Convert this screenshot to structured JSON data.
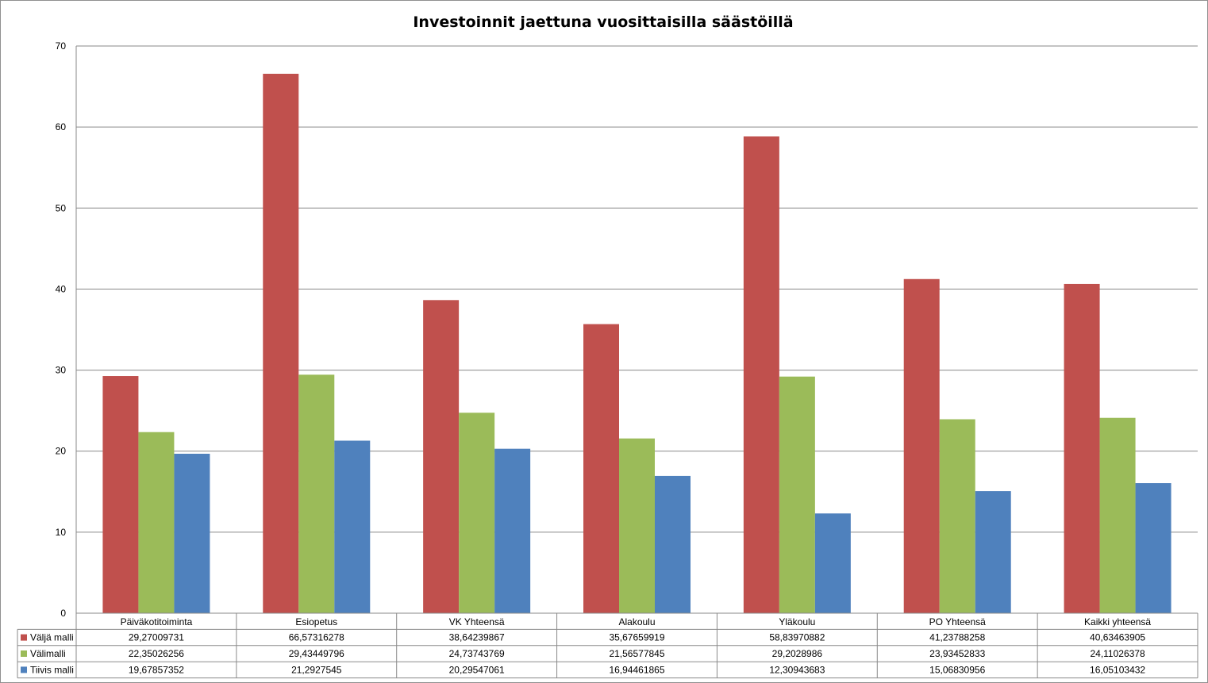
{
  "chart_data": {
    "type": "bar",
    "title": "Investoinnit jaettuna vuosittaisilla säästöillä",
    "xlabel": "",
    "ylabel": "",
    "ylim": [
      0,
      70
    ],
    "yticks": [
      "0",
      "10",
      "20",
      "30",
      "40",
      "50",
      "60",
      "70"
    ],
    "grid": true,
    "legend": "data-table-left",
    "categories": [
      "Päiväkotitoiminta",
      "Esiopetus",
      "VK Yhteensä",
      "Alakoulu",
      "Yläkoulu",
      "PO Yhteensä",
      "Kaikki yhteensä"
    ],
    "series": [
      {
        "name": "Väljä malli",
        "color": "#c0504d",
        "values": [
          29.27009731,
          66.57316278,
          38.64239867,
          35.67659919,
          58.83970882,
          41.23788258,
          40.63463905
        ],
        "labels": [
          "29,27009731",
          "66,57316278",
          "38,64239867",
          "35,67659919",
          "58,83970882",
          "41,23788258",
          "40,63463905"
        ]
      },
      {
        "name": "Välimalli",
        "color": "#9bbb59",
        "values": [
          22.35026256,
          29.43449796,
          24.73743769,
          21.56577845,
          29.2028986,
          23.93452833,
          24.11026378
        ],
        "labels": [
          "22,35026256",
          "29,43449796",
          "24,73743769",
          "21,56577845",
          "29,2028986",
          "23,93452833",
          "24,11026378"
        ]
      },
      {
        "name": "Tiivis malli",
        "color": "#4f81bd",
        "values": [
          19.67857352,
          21.2927545,
          20.29547061,
          16.94461865,
          12.30943683,
          15.06830956,
          16.05103432
        ],
        "labels": [
          "19,67857352",
          "21,2927545",
          "20,29547061",
          "16,94461865",
          "12,30943683",
          "15,06830956",
          "16,05103432"
        ]
      }
    ]
  }
}
